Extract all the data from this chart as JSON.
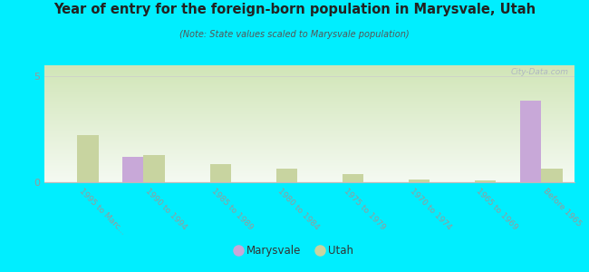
{
  "title": "Year of entry for the foreign-born population in Marysvale, Utah",
  "subtitle": "(Note: State values scaled to Marysvale population)",
  "categories": [
    "1995 to Marc...",
    "1990 to 1994",
    "1985 to 1989",
    "1980 to 1984",
    "1975 to 1979",
    "1970 to 1974",
    "1965 to 1969",
    "Before 1965"
  ],
  "marysvale_values": [
    0,
    1.2,
    0,
    0,
    0,
    0,
    0,
    3.85
  ],
  "utah_values": [
    2.2,
    1.3,
    0.85,
    0.65,
    0.38,
    0.13,
    0.08,
    0.65
  ],
  "marysvale_color": "#c8a8d8",
  "utah_color": "#c8d4a0",
  "bg_color": "#00eeff",
  "plot_bg_topleft": "#c8dba8",
  "plot_bg_topright": "#e8d8e8",
  "plot_bg_bottom": "#f5f8f0",
  "ylim": [
    0,
    5.5
  ],
  "yticks": [
    0,
    5
  ],
  "watermark": "City-Data.com",
  "legend_marysvale": "Marysvale",
  "legend_utah": "Utah"
}
